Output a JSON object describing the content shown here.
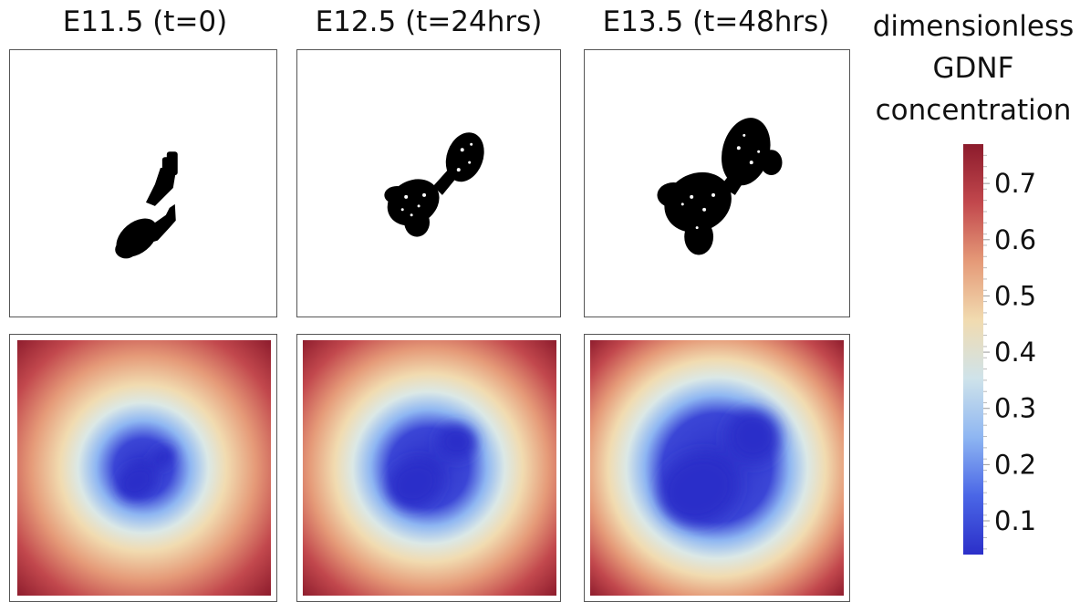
{
  "columns": [
    {
      "title": "E11.5 (t=0)"
    },
    {
      "title": "E12.5 (t=24hrs)"
    },
    {
      "title": "E13.5 (t=48hrs)"
    }
  ],
  "colorbar": {
    "title_lines": [
      "dimensionless",
      "GDNF",
      "concentration"
    ],
    "min": 0.04,
    "max": 0.77,
    "ticks": [
      "0.1",
      "0.2",
      "0.3",
      "0.4",
      "0.5",
      "0.6",
      "0.7"
    ],
    "colors": [
      "#2b2fc9",
      "#4a66e6",
      "#8eb6f2",
      "#cfe3ea",
      "#f1dbb0",
      "#e59a78",
      "#c2484d",
      "#8c1b2c"
    ]
  }
}
